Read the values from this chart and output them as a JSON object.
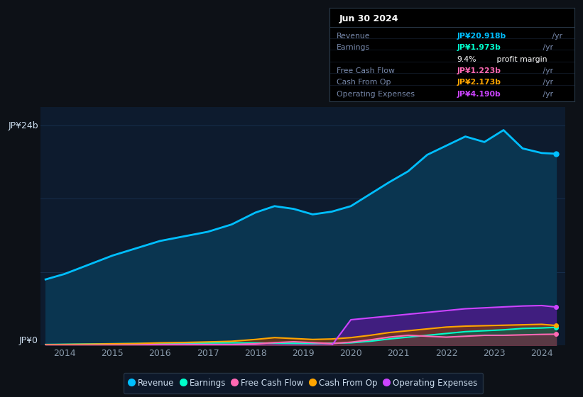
{
  "bg_color": "#0d1117",
  "plot_bg_color": "#0d1b2e",
  "grid_color": "#1e3a5f",
  "text_color": "#8899aa",
  "title_text_color": "#ccddee",
  "ylabel_text": "JP¥24b",
  "y0_label": "JP¥0",
  "x_ticks": [
    2014,
    2015,
    2016,
    2017,
    2018,
    2019,
    2020,
    2021,
    2022,
    2023,
    2024
  ],
  "ylim": [
    0,
    26
  ],
  "years": [
    2013.6,
    2014.0,
    2014.5,
    2015.0,
    2015.5,
    2016.0,
    2016.5,
    2017.0,
    2017.5,
    2018.0,
    2018.4,
    2018.8,
    2019.2,
    2019.6,
    2020.0,
    2020.4,
    2020.8,
    2021.2,
    2021.6,
    2022.0,
    2022.4,
    2022.8,
    2023.2,
    2023.6,
    2024.0,
    2024.3
  ],
  "revenue": [
    7.2,
    7.8,
    8.8,
    9.8,
    10.6,
    11.4,
    11.9,
    12.4,
    13.2,
    14.5,
    15.2,
    14.9,
    14.3,
    14.6,
    15.2,
    16.5,
    17.8,
    19.0,
    20.8,
    21.8,
    22.8,
    22.2,
    23.5,
    21.5,
    21.0,
    20.918
  ],
  "earnings": [
    0.1,
    0.12,
    0.15,
    0.18,
    0.2,
    0.22,
    0.24,
    0.26,
    0.28,
    0.26,
    0.25,
    0.23,
    0.22,
    0.24,
    0.28,
    0.45,
    0.7,
    0.9,
    1.1,
    1.3,
    1.5,
    1.6,
    1.7,
    1.85,
    1.9,
    1.973
  ],
  "free_cash_flow": [
    0.04,
    0.05,
    0.06,
    0.07,
    0.08,
    0.1,
    0.12,
    0.1,
    0.1,
    0.18,
    0.3,
    0.4,
    0.3,
    0.2,
    0.35,
    0.6,
    0.9,
    1.1,
    1.0,
    0.9,
    1.0,
    1.1,
    1.1,
    1.15,
    1.2,
    1.223
  ],
  "cash_from_op": [
    0.08,
    0.1,
    0.13,
    0.17,
    0.2,
    0.28,
    0.32,
    0.38,
    0.45,
    0.65,
    0.85,
    0.75,
    0.65,
    0.7,
    0.85,
    1.1,
    1.4,
    1.6,
    1.8,
    2.0,
    2.1,
    2.15,
    2.2,
    2.25,
    2.3,
    2.173
  ],
  "operating_expenses": [
    0.0,
    0.0,
    0.0,
    0.0,
    0.0,
    0.0,
    0.0,
    0.0,
    0.0,
    0.0,
    0.0,
    0.0,
    0.0,
    0.0,
    2.8,
    3.0,
    3.2,
    3.4,
    3.6,
    3.8,
    4.0,
    4.1,
    4.2,
    4.3,
    4.35,
    4.19
  ],
  "revenue_color": "#00bfff",
  "earnings_color": "#00ffcc",
  "free_cash_flow_color": "#ff69b4",
  "cash_from_op_color": "#ffa500",
  "operating_expenses_color": "#cc44ff",
  "revenue_fill_color": "#0a3550",
  "legend": [
    {
      "label": "Revenue",
      "color": "#00bfff"
    },
    {
      "label": "Earnings",
      "color": "#00ffcc"
    },
    {
      "label": "Free Cash Flow",
      "color": "#ff69b4"
    },
    {
      "label": "Cash From Op",
      "color": "#ffa500"
    },
    {
      "label": "Operating Expenses",
      "color": "#cc44ff"
    }
  ]
}
